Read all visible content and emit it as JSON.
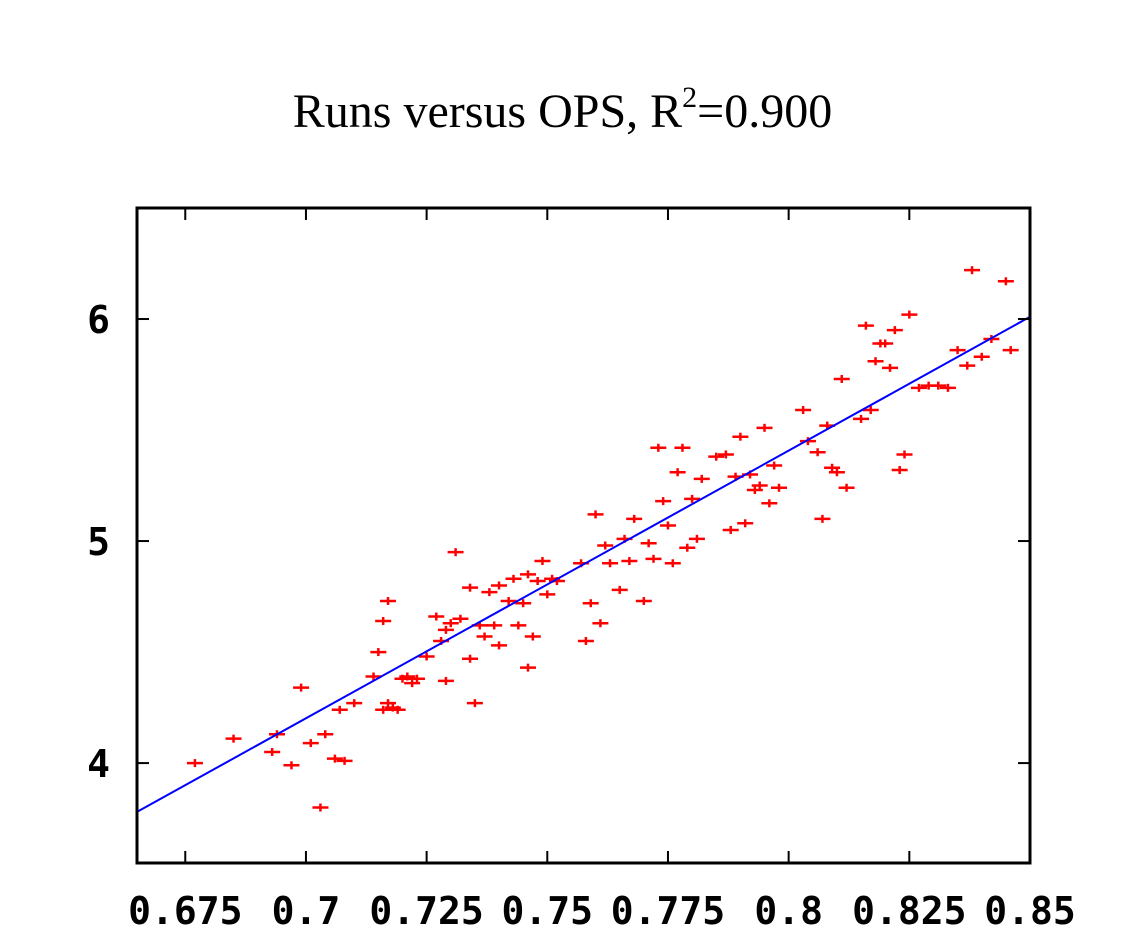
{
  "chart_data": {
    "type": "scatter",
    "title": "Runs versus OPS, R",
    "title_sup": "2",
    "title_suffix": "=0.900",
    "xlabel": "",
    "ylabel": "",
    "xlim": [
      0.665,
      0.85
    ],
    "ylim": [
      3.55,
      6.5
    ],
    "x_ticks": [
      0.675,
      0.7,
      0.725,
      0.75,
      0.775,
      0.8,
      0.825,
      0.85
    ],
    "x_tick_labels": [
      "0.675",
      "0.7",
      "0.725",
      "0.75",
      "0.775",
      "0.8",
      "0.825",
      "0.85"
    ],
    "y_ticks": [
      4,
      5,
      6
    ],
    "y_tick_labels": [
      "4",
      "5",
      "6"
    ],
    "grid": false,
    "colors": {
      "points": "#ff0000",
      "fit_line": "#0000ff",
      "axes": "#000000"
    },
    "series": [
      {
        "marker": "plus",
        "x": [
          0.677,
          0.685,
          0.693,
          0.694,
          0.697,
          0.699,
          0.701,
          0.703,
          0.704,
          0.706,
          0.707,
          0.708,
          0.71,
          0.714,
          0.715,
          0.716,
          0.716,
          0.717,
          0.717,
          0.718,
          0.719,
          0.72,
          0.721,
          0.722,
          0.723,
          0.725,
          0.727,
          0.728,
          0.729,
          0.729,
          0.73,
          0.731,
          0.732,
          0.734,
          0.734,
          0.735,
          0.736,
          0.737,
          0.738,
          0.739,
          0.74,
          0.74,
          0.742,
          0.743,
          0.744,
          0.745,
          0.746,
          0.746,
          0.747,
          0.748,
          0.749,
          0.75,
          0.751,
          0.752,
          0.757,
          0.758,
          0.759,
          0.76,
          0.761,
          0.762,
          0.763,
          0.765,
          0.766,
          0.767,
          0.768,
          0.77,
          0.771,
          0.772,
          0.773,
          0.774,
          0.775,
          0.776,
          0.777,
          0.778,
          0.779,
          0.78,
          0.781,
          0.782,
          0.785,
          0.787,
          0.788,
          0.789,
          0.79,
          0.791,
          0.792,
          0.793,
          0.794,
          0.795,
          0.796,
          0.797,
          0.798,
          0.803,
          0.804,
          0.806,
          0.807,
          0.808,
          0.809,
          0.81,
          0.811,
          0.812,
          0.815,
          0.816,
          0.817,
          0.818,
          0.819,
          0.82,
          0.821,
          0.822,
          0.823,
          0.824,
          0.825,
          0.827,
          0.829,
          0.831,
          0.833,
          0.835,
          0.837,
          0.838,
          0.84,
          0.842,
          0.845,
          0.846
        ],
        "y": [
          4.0,
          4.11,
          4.05,
          4.13,
          3.99,
          4.34,
          4.09,
          3.8,
          4.13,
          4.02,
          4.24,
          4.01,
          4.27,
          4.39,
          4.5,
          4.24,
          4.64,
          4.27,
          4.73,
          4.25,
          4.24,
          4.38,
          4.39,
          4.36,
          4.38,
          4.48,
          4.66,
          4.55,
          4.37,
          4.6,
          4.63,
          4.95,
          4.65,
          4.47,
          4.79,
          4.27,
          4.62,
          4.57,
          4.77,
          4.62,
          4.53,
          4.8,
          4.73,
          4.83,
          4.62,
          4.72,
          4.43,
          4.85,
          4.57,
          4.82,
          4.91,
          4.76,
          4.83,
          4.82,
          4.9,
          4.55,
          4.72,
          5.12,
          4.63,
          4.98,
          4.9,
          4.78,
          5.01,
          4.91,
          5.1,
          4.73,
          4.99,
          4.92,
          5.42,
          5.18,
          5.07,
          4.9,
          5.31,
          5.42,
          4.97,
          5.19,
          5.01,
          5.28,
          5.38,
          5.39,
          5.05,
          5.29,
          5.47,
          5.08,
          5.3,
          5.23,
          5.25,
          5.51,
          5.17,
          5.34,
          5.24,
          5.59,
          5.45,
          5.4,
          5.1,
          5.52,
          5.33,
          5.31,
          5.73,
          5.24,
          5.55,
          5.97,
          5.59,
          5.81,
          5.89,
          5.89,
          5.78,
          5.95,
          5.32,
          5.39,
          6.02,
          5.69,
          5.7,
          5.7,
          5.69,
          5.86,
          5.79,
          6.22,
          5.83,
          5.91,
          6.17,
          5.86
        ]
      }
    ],
    "fit_line": {
      "x": [
        0.665,
        0.85
      ],
      "y": [
        3.78,
        6.01
      ]
    }
  }
}
